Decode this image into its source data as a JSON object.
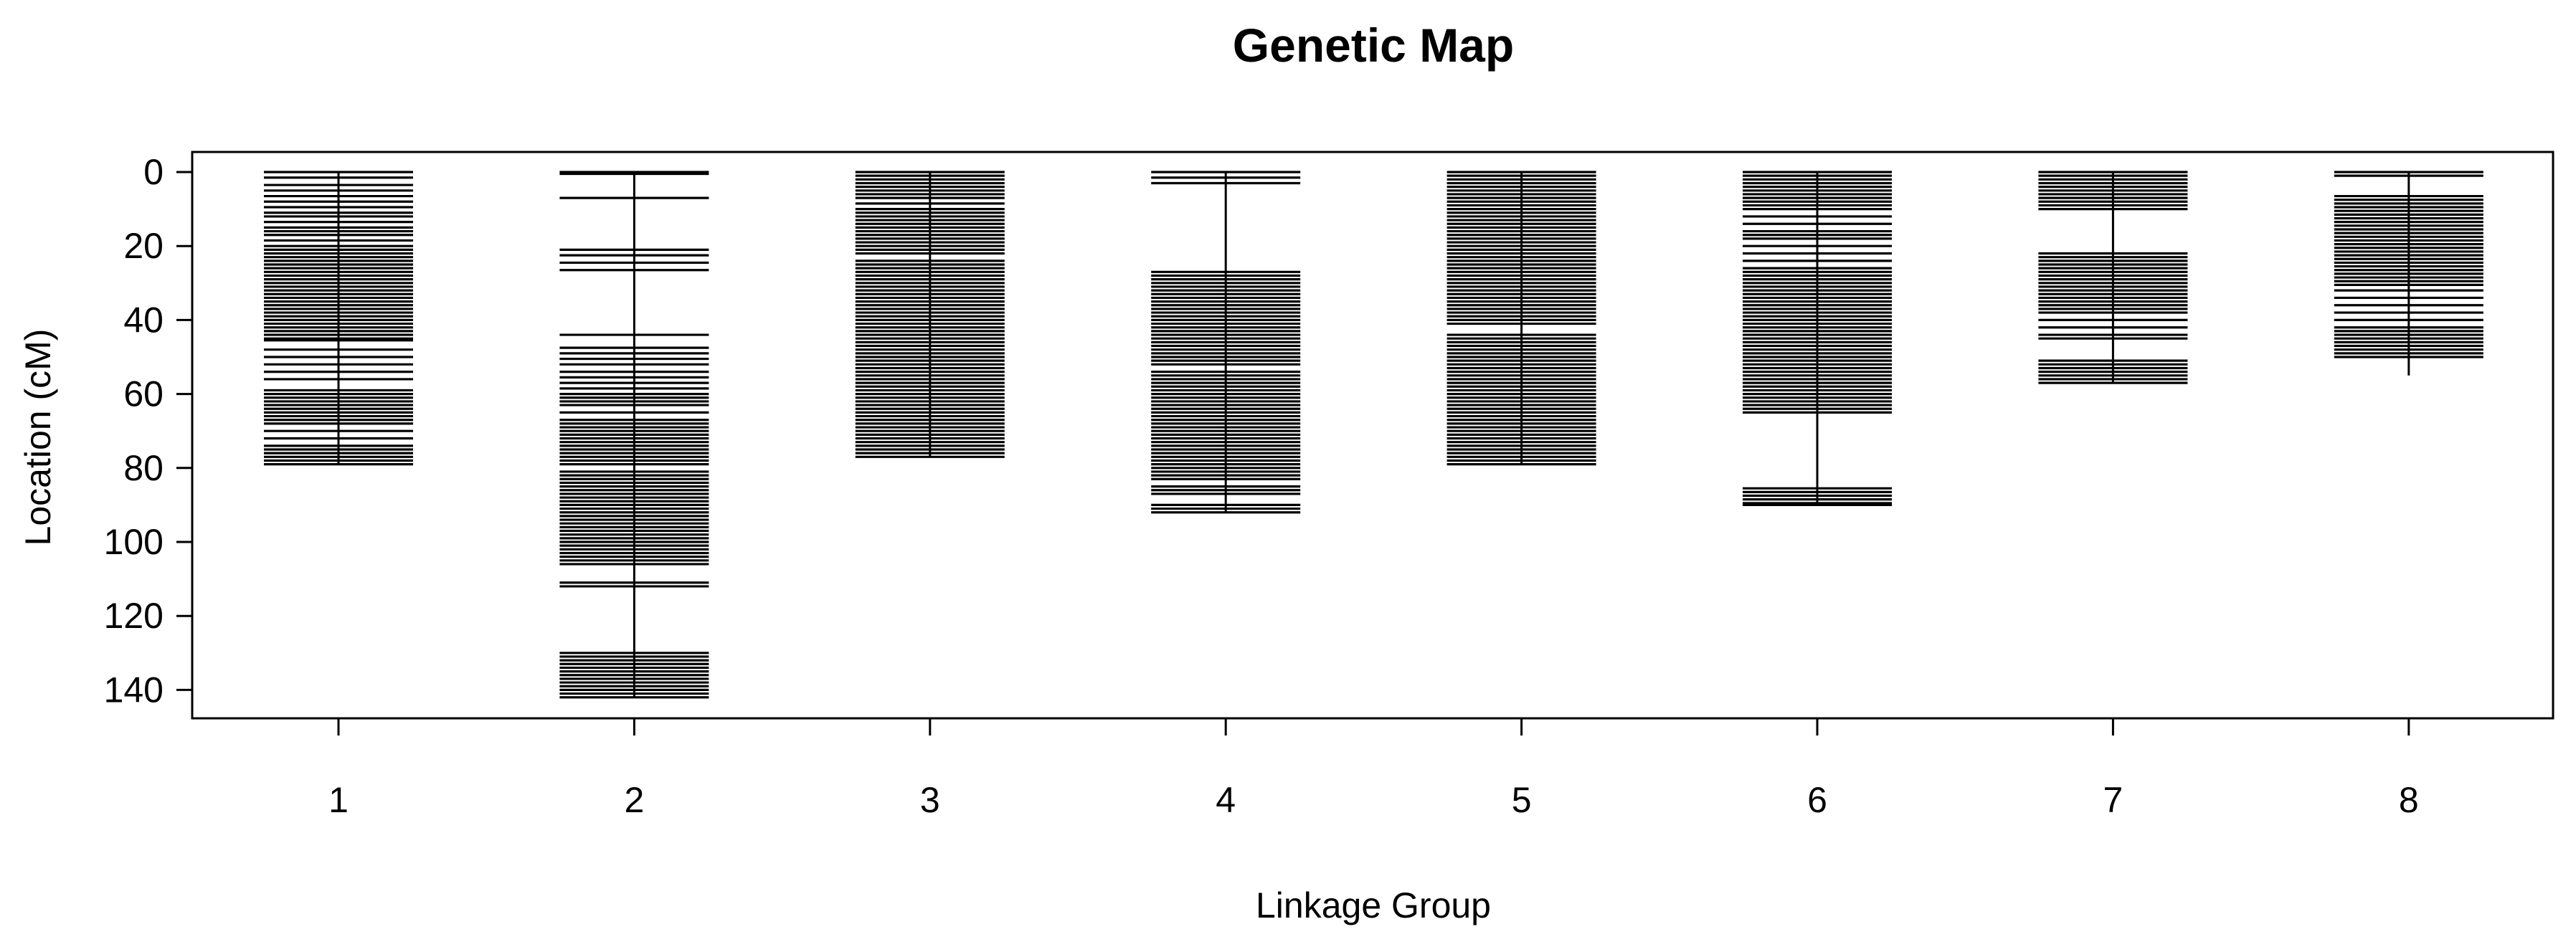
{
  "chart_data": {
    "type": "genetic-map",
    "title": "Genetic Map",
    "xlabel": "Linkage Group",
    "ylabel": "Location (cM)",
    "y_axis_reversed": true,
    "ylim": [
      0,
      146
    ],
    "yticks": [
      0,
      20,
      40,
      60,
      80,
      100,
      120,
      140
    ],
    "grid": false,
    "legend": "none",
    "color": "#000000",
    "groups": [
      {
        "label": "1",
        "min": 0,
        "max": 79,
        "markers": [
          0,
          1.5,
          3.5,
          5,
          6.5,
          8,
          9.5,
          11,
          12,
          13.5,
          15,
          16,
          17,
          18.5,
          20,
          21,
          22,
          23,
          24,
          25,
          26,
          27,
          28,
          29,
          30,
          31,
          32,
          33,
          34,
          35,
          36,
          37,
          38,
          39,
          40,
          41,
          42,
          43,
          44,
          45,
          45.5,
          48,
          50,
          52,
          54,
          56,
          59,
          60,
          61,
          62,
          63,
          64,
          65,
          66,
          67,
          68,
          70,
          72,
          74,
          75,
          76,
          77,
          78,
          79
        ]
      },
      {
        "label": "2",
        "min": 0,
        "max": 142,
        "markers": [
          0,
          0.5,
          7,
          21,
          22.5,
          24.5,
          26.5,
          44,
          47.5,
          49,
          50.5,
          52,
          54,
          55.5,
          57,
          58.5,
          60,
          61,
          62,
          63,
          65,
          67,
          68,
          69,
          70,
          71,
          72,
          73,
          74,
          75,
          76,
          77,
          78,
          79,
          81,
          82,
          83,
          84,
          85,
          86,
          87,
          88,
          89,
          90,
          91,
          92,
          93,
          94,
          95,
          96,
          97,
          98,
          99,
          100,
          101,
          102,
          103,
          104,
          105,
          106,
          111,
          112,
          130,
          131,
          132,
          133,
          134,
          135,
          136,
          137,
          138,
          139,
          140,
          141,
          142
        ]
      },
      {
        "label": "3",
        "min": 0,
        "max": 77,
        "markers": [
          0,
          1,
          2,
          3,
          4,
          5,
          6,
          7,
          8.5,
          10,
          11,
          12,
          13,
          14,
          15,
          16,
          17,
          18,
          19,
          20,
          21,
          22,
          24,
          25,
          26,
          27,
          28,
          29,
          30,
          31,
          32,
          33,
          34,
          35,
          36,
          37,
          38,
          39,
          40,
          41,
          42,
          43,
          44,
          45,
          46,
          47,
          48,
          49,
          50,
          51,
          52,
          53,
          54,
          55,
          56,
          57,
          58,
          59,
          60,
          61,
          62,
          63,
          64,
          65,
          66,
          67,
          68,
          69,
          70,
          71,
          72,
          73,
          74,
          75,
          76,
          77
        ]
      },
      {
        "label": "4",
        "min": 0,
        "max": 92,
        "markers": [
          0,
          1.5,
          3,
          27,
          28,
          29,
          30,
          31,
          32,
          33,
          34,
          35,
          36,
          37,
          38,
          39,
          40,
          41,
          42,
          43,
          44,
          45,
          46,
          47,
          48,
          49,
          50,
          51,
          52,
          54,
          55,
          56,
          57,
          58,
          59,
          60,
          61,
          62,
          63,
          64,
          65,
          66,
          67,
          68,
          69,
          70,
          71,
          72,
          73,
          74,
          75,
          76,
          77,
          78,
          79,
          80,
          81,
          82,
          83,
          85,
          86,
          87,
          90,
          91,
          92
        ]
      },
      {
        "label": "5",
        "min": 0,
        "max": 79,
        "markers": [
          0,
          1,
          2,
          3,
          4,
          5,
          6,
          7,
          8,
          9,
          10,
          11,
          12,
          13,
          14,
          15,
          16,
          17,
          18,
          19,
          20,
          21,
          22,
          23,
          24,
          25,
          26,
          27,
          28,
          29,
          30,
          31,
          32,
          33,
          34,
          35,
          36,
          37,
          38,
          39,
          40,
          41,
          44,
          45,
          46,
          47,
          48,
          49,
          50,
          51,
          52,
          53,
          54,
          55,
          56,
          57,
          58,
          59,
          60,
          61,
          62,
          63,
          64,
          65,
          66,
          67,
          68,
          69,
          70,
          71,
          72,
          73,
          74,
          75,
          76,
          77,
          78,
          79
        ]
      },
      {
        "label": "6",
        "min": 0,
        "max": 90,
        "markers": [
          0,
          1,
          2,
          3,
          4,
          5,
          6,
          7,
          8,
          9,
          10,
          12,
          14,
          16,
          17,
          18,
          20,
          22,
          24,
          26,
          27,
          28,
          29,
          30,
          31,
          32,
          33,
          34,
          35,
          36,
          37,
          38,
          39,
          40,
          41,
          42,
          43,
          44,
          45,
          46,
          47,
          48,
          49,
          50,
          51,
          52,
          53,
          54,
          55,
          56,
          57,
          58,
          59,
          60,
          61,
          62,
          63,
          64,
          65,
          85.5,
          86.5,
          87.5,
          88.5,
          89.5,
          90
        ]
      },
      {
        "label": "7",
        "min": 0,
        "max": 57,
        "markers": [
          0,
          1,
          2,
          3,
          4,
          5,
          6,
          7,
          8,
          9,
          10,
          22,
          23,
          24,
          25,
          26,
          27,
          28,
          29,
          30,
          31,
          32,
          33,
          34,
          35,
          36,
          37,
          38,
          40,
          42,
          44,
          45,
          51,
          52,
          53,
          54,
          55,
          56,
          57
        ]
      },
      {
        "label": "8",
        "min": 0,
        "max": 55,
        "markers": [
          0,
          1,
          6.5,
          7.5,
          8.5,
          9.5,
          10.5,
          11.5,
          12.5,
          13.5,
          14.5,
          15.5,
          16.5,
          17.5,
          18.5,
          19.5,
          20.5,
          21.5,
          22.5,
          23.5,
          24.5,
          25.5,
          26.5,
          27.5,
          28.5,
          29.5,
          30.5,
          32,
          34,
          36,
          38,
          40,
          42,
          43,
          44,
          45,
          46,
          47,
          48,
          49,
          50
        ]
      }
    ]
  }
}
